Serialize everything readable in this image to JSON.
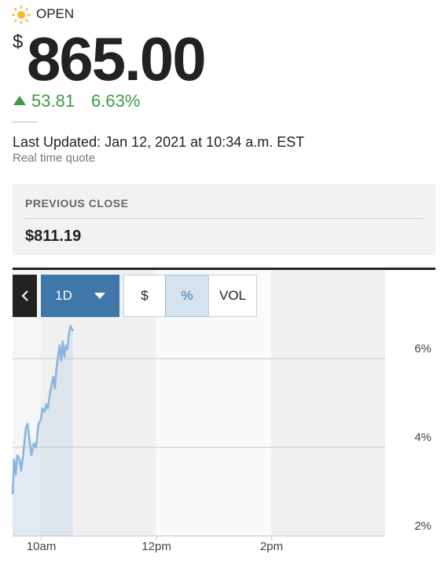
{
  "header": {
    "status": "OPEN",
    "currency": "$",
    "price": "865.00",
    "change": "53.81",
    "change_percent": "6.63%",
    "last_updated": "Last Updated: Jan 12, 2021 at 10:34 a.m. EST",
    "quote_type": "Real time quote"
  },
  "previous_close": {
    "label": "PREVIOUS CLOSE",
    "value": "$811.19"
  },
  "controls": {
    "range": "1D",
    "dollar": "$",
    "percent": "%",
    "volume": "VOL"
  },
  "chart_data": {
    "type": "line",
    "x": [
      9.5,
      9.527,
      9.554,
      9.582,
      9.622,
      9.65,
      9.69,
      9.731,
      9.759,
      9.786,
      9.827,
      9.867,
      9.908,
      9.949,
      9.99,
      10.017,
      10.058,
      10.085,
      10.112,
      10.153,
      10.18,
      10.207,
      10.235,
      10.262,
      10.289,
      10.316,
      10.344,
      10.371,
      10.398,
      10.425,
      10.452,
      10.48,
      10.507,
      10.548
    ],
    "series": [
      {
        "color": "#8ab4de",
        "values": [
          2.94,
          3.73,
          3.38,
          3.82,
          3.73,
          3.47,
          3.91,
          4.44,
          4.53,
          4.27,
          3.82,
          4.09,
          4.0,
          4.53,
          4.62,
          4.88,
          4.8,
          4.97,
          4.88,
          5.24,
          5.42,
          5.59,
          5.33,
          5.77,
          6.04,
          6.3,
          5.95,
          6.39,
          6.04,
          6.3,
          6.21,
          6.57,
          6.74,
          6.62
        ]
      }
    ],
    "xlim": [
      9.5,
      16
    ],
    "ylim": [
      2,
      8
    ],
    "xticks": [
      {
        "value": 10,
        "label": "10am"
      },
      {
        "value": 12,
        "label": "12pm"
      },
      {
        "value": 14,
        "label": "2pm"
      }
    ],
    "yticks": [
      {
        "value": 2,
        "label": "2%"
      },
      {
        "value": 4,
        "label": "4%"
      },
      {
        "value": 6,
        "label": "6%"
      }
    ],
    "grid": true
  }
}
